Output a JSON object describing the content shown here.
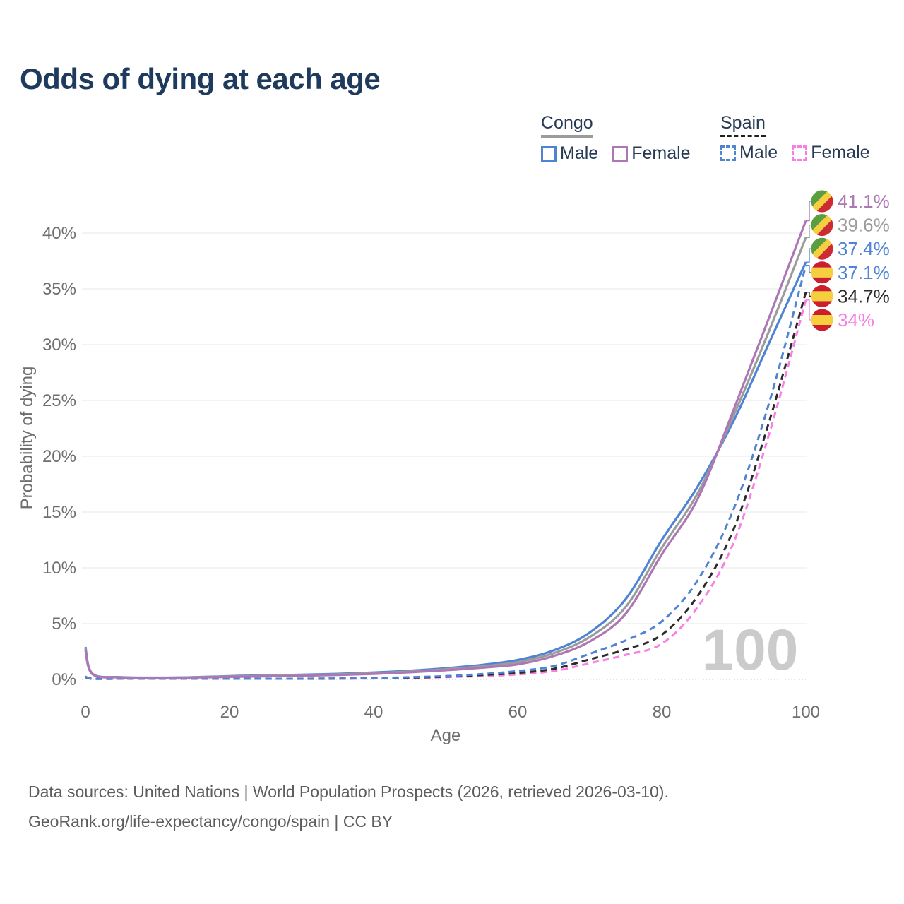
{
  "title": "Odds of dying at each age",
  "legend": {
    "congo": {
      "label": "Congo",
      "male": "Male",
      "female": "Female"
    },
    "spain": {
      "label": "Spain",
      "male": "Male",
      "female": "Female"
    }
  },
  "footer": {
    "line1": "Data sources: United Nations | World Population Prospects (2026, retrieved 2026-03-10).",
    "line2": "GeoRank.org/life-expectancy/congo/spain | CC BY"
  },
  "colors": {
    "male_line": "#4f83d3",
    "congo_female_line": "#ad76b5",
    "spain_female_line": "#f97ee3",
    "congo_all_line": "#9b9b9b",
    "spain_all_line": "#2b2b2b",
    "title_text": "#1e3a5c",
    "legend_text": "#263a53",
    "axis_text": "#6e6e6e",
    "grid": "#ececec",
    "zero_line": "#cfcfcf",
    "watermark": "#cbcbcb",
    "footer_text": "#5d5d5d"
  },
  "chart_data": {
    "type": "line",
    "title": "Odds of dying at each age",
    "xlabel": "Age",
    "ylabel": "Probability of dying",
    "xlim": [
      0,
      100
    ],
    "ylim": [
      0,
      43
    ],
    "x_ticks": [
      0,
      20,
      40,
      60,
      80,
      100
    ],
    "y_ticks": [
      0,
      5,
      10,
      15,
      20,
      25,
      30,
      35,
      40
    ],
    "grid": "horizontal",
    "legend_position": "top-right",
    "watermark": "100",
    "ages": [
      0,
      1,
      5,
      10,
      15,
      20,
      25,
      30,
      35,
      40,
      45,
      50,
      55,
      60,
      65,
      70,
      75,
      80,
      85,
      90,
      95,
      100
    ],
    "series": [
      {
        "id": "congo-female",
        "name": "Congo Female",
        "color": "#ad76b5",
        "dash": "solid",
        "flag": "congo",
        "end_label": "41.1%",
        "end_value": 41.1,
        "values": [
          2.6,
          0.45,
          0.18,
          0.14,
          0.17,
          0.23,
          0.28,
          0.33,
          0.4,
          0.5,
          0.64,
          0.82,
          1.05,
          1.35,
          2.1,
          3.4,
          5.9,
          11.2,
          16.2,
          24.2,
          32.6,
          41.1
        ]
      },
      {
        "id": "congo-all",
        "name": "Congo (both sexes)",
        "color": "#9b9b9b",
        "dash": "solid",
        "flag": "congo",
        "end_label": "39.6%",
        "end_value": 39.6,
        "values": [
          2.75,
          0.48,
          0.19,
          0.15,
          0.19,
          0.27,
          0.32,
          0.38,
          0.45,
          0.56,
          0.71,
          0.91,
          1.17,
          1.55,
          2.35,
          3.8,
          6.5,
          11.8,
          16.7,
          23.7,
          31.4,
          39.6
        ]
      },
      {
        "id": "congo-male",
        "name": "Congo Male",
        "color": "#4f83d3",
        "dash": "solid",
        "flag": "congo",
        "end_label": "37.4%",
        "end_value": 37.4,
        "values": [
          2.9,
          0.5,
          0.2,
          0.16,
          0.2,
          0.3,
          0.36,
          0.42,
          0.5,
          0.62,
          0.78,
          1.0,
          1.3,
          1.75,
          2.6,
          4.2,
          7.2,
          12.5,
          17.3,
          23.2,
          30.3,
          37.4
        ]
      },
      {
        "id": "spain-male",
        "name": "Spain Male",
        "color": "#4f83d3",
        "dash": "dashed",
        "flag": "spain",
        "end_label": "37.1%",
        "end_value": 37.1,
        "values": [
          0.25,
          0.02,
          0.01,
          0.01,
          0.03,
          0.05,
          0.06,
          0.07,
          0.09,
          0.13,
          0.2,
          0.3,
          0.48,
          0.75,
          1.2,
          2.3,
          3.5,
          5.2,
          8.9,
          15.3,
          25.0,
          37.1
        ]
      },
      {
        "id": "spain-all",
        "name": "Spain (both sexes)",
        "color": "#2b2b2b",
        "dash": "dashed",
        "flag": "spain",
        "end_label": "34.7%",
        "end_value": 34.7,
        "values": [
          0.22,
          0.018,
          0.009,
          0.009,
          0.02,
          0.04,
          0.05,
          0.06,
          0.08,
          0.11,
          0.16,
          0.25,
          0.4,
          0.58,
          0.95,
          1.8,
          2.7,
          4.0,
          7.5,
          13.5,
          23.3,
          34.7
        ]
      },
      {
        "id": "spain-female",
        "name": "Spain Female",
        "color": "#f97ee3",
        "dash": "dashed",
        "flag": "spain",
        "end_label": "34%",
        "end_value": 34,
        "values": [
          0.2,
          0.015,
          0.008,
          0.008,
          0.015,
          0.03,
          0.04,
          0.05,
          0.06,
          0.09,
          0.13,
          0.2,
          0.3,
          0.45,
          0.75,
          1.45,
          2.2,
          3.2,
          6.5,
          12.3,
          22.2,
          34.0
        ]
      }
    ],
    "flag_colors": {
      "congo": {
        "green": "#5a9e3f",
        "yellow": "#f5cf3e",
        "red": "#cc2b33"
      },
      "spain": {
        "red": "#cc1f2e",
        "yellow": "#f5cf3e"
      }
    }
  }
}
